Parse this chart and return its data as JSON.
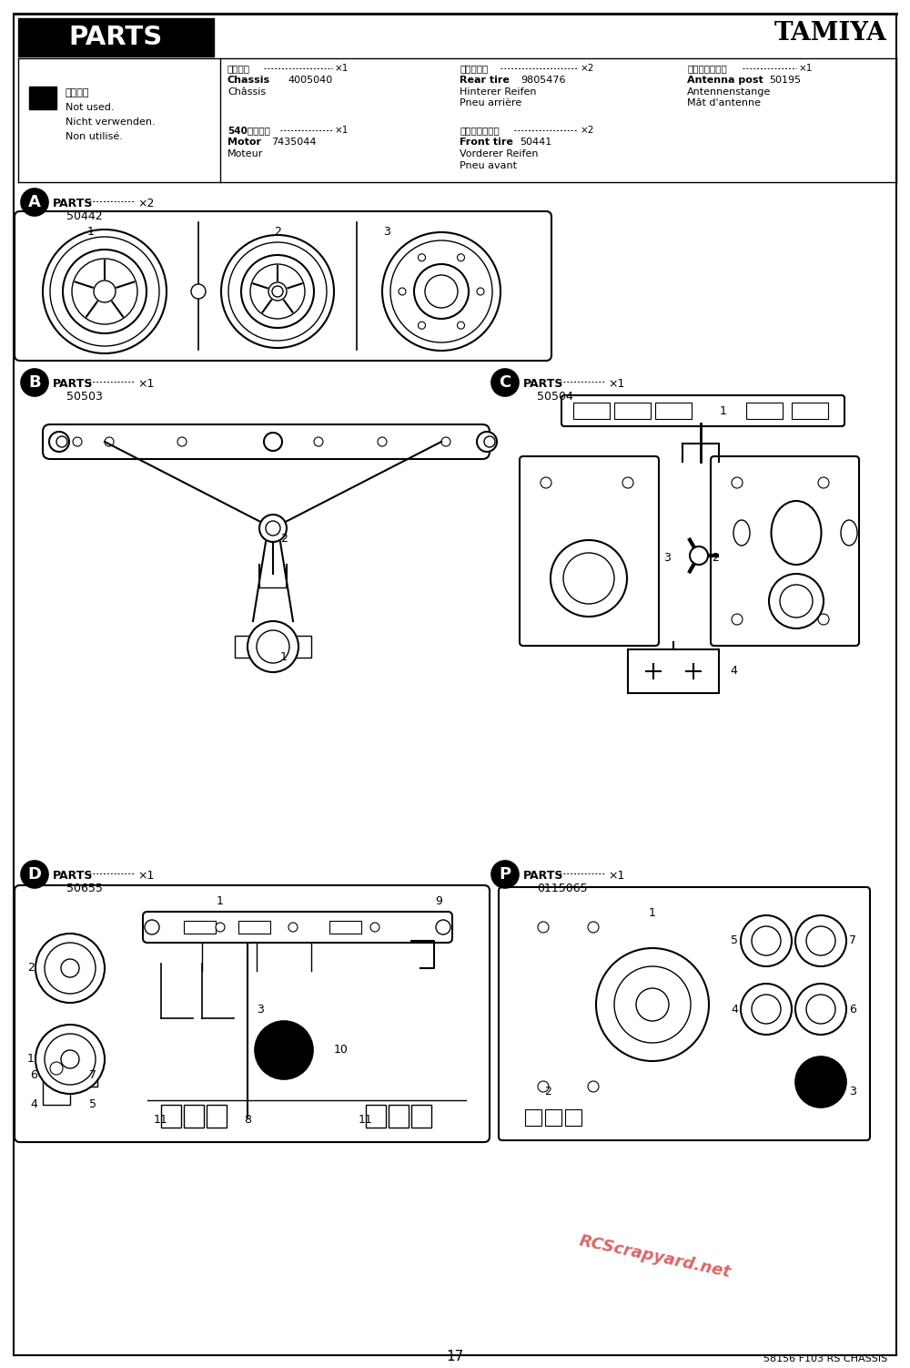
{
  "title": "TAMIYA",
  "page_title": "PARTS",
  "page_number": "17",
  "footer_text": "58156 F103 RS CHASSIS",
  "watermark": "RCScrapyard.net",
  "bg_color": "#ffffff",
  "parts_header_bg": "#111111",
  "parts_header_fg": "#ffffff",
  "not_used_text": [
    "不要部品",
    "Not used.",
    "Nicht verwenden.",
    "Non utilisé."
  ],
  "chassis_jp": "シャーシ",
  "chassis_num": "4005040",
  "rear_tire_jp": "リヤタイヤ",
  "rear_tire_num": "9805476",
  "antenna_jp": "アンテナポスト",
  "antenna_num": "50195",
  "motor_jp": "540モーター",
  "motor_num": "7435044",
  "front_tire_jp": "フロントタイヤ",
  "front_tire_num": "50441",
  "sec_A_num": "50442",
  "sec_B_num": "50503",
  "sec_C_num": "50504",
  "sec_D_num": "50655",
  "sec_P_num": "0115065"
}
